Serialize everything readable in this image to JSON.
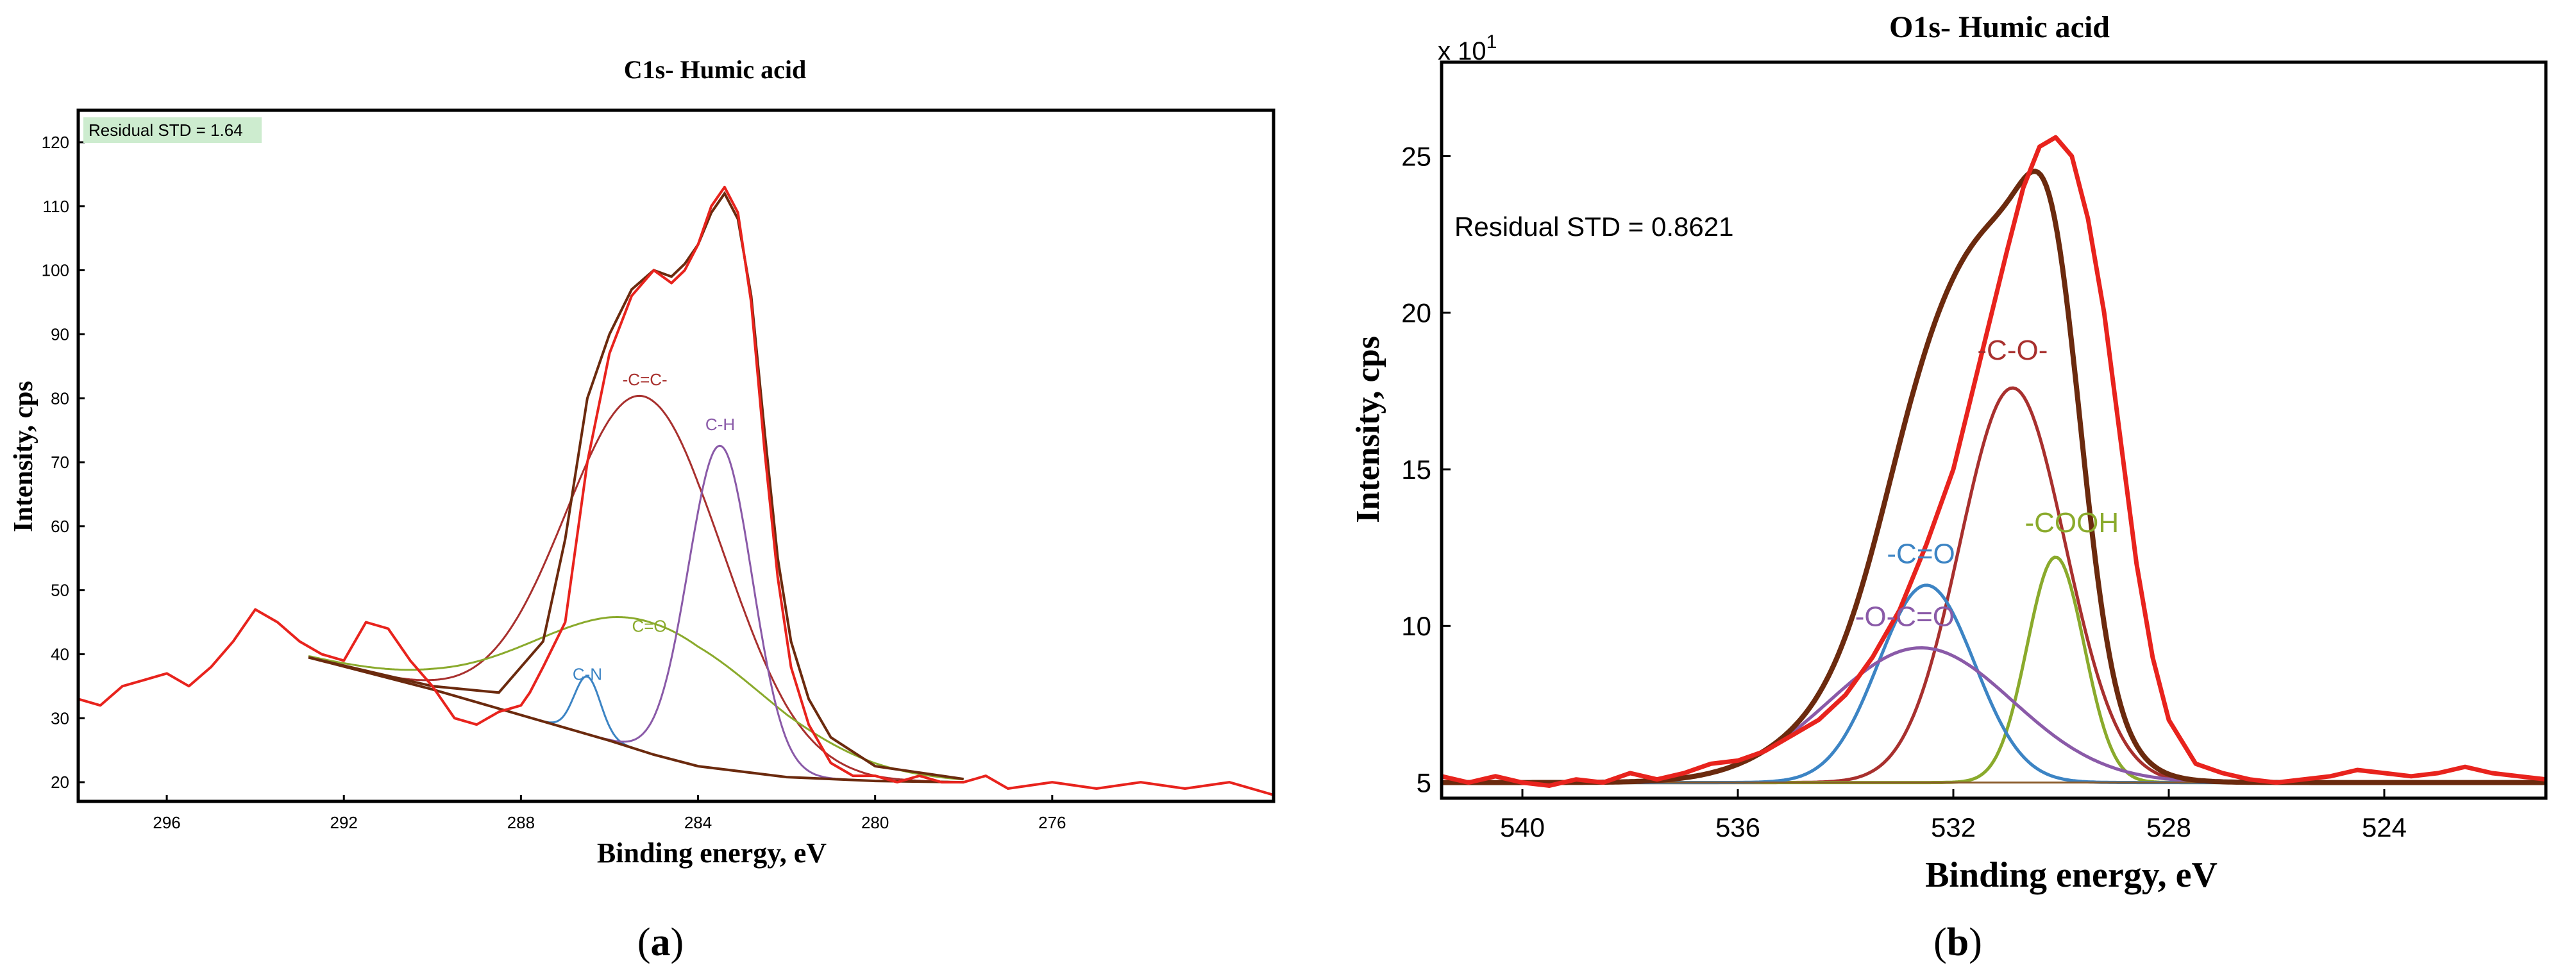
{
  "chart_data": [
    {
      "type": "line",
      "panel_label": "a",
      "title": "C1s- Humic acid",
      "xlabel": "Binding energy, eV",
      "ylabel": "Intensity, cps",
      "xlim": [
        298,
        271
      ],
      "ylim": [
        17,
        125
      ],
      "x_ticks": [
        296,
        292,
        288,
        284,
        280,
        276
      ],
      "y_ticks": [
        20,
        30,
        40,
        50,
        60,
        70,
        80,
        90,
        100,
        110,
        120
      ],
      "annotation": "Residual STD = 1.64",
      "annotation_bg": "#cdeccf",
      "background": {
        "name": "Background",
        "color": "#6b2a0e",
        "points": [
          [
            292.8,
            39.5
          ],
          [
            290,
            34.5
          ],
          [
            288,
            30.5
          ],
          [
            286,
            26.5
          ],
          [
            285,
            24.3
          ],
          [
            284,
            22.5
          ],
          [
            282,
            20.8
          ],
          [
            280,
            20.2
          ],
          [
            278,
            20.0
          ]
        ]
      },
      "raw": {
        "name": "Measured",
        "color": "#e8231d",
        "points": [
          [
            298,
            33
          ],
          [
            297.5,
            32
          ],
          [
            297,
            35
          ],
          [
            296.5,
            36
          ],
          [
            296,
            37
          ],
          [
            295.5,
            35
          ],
          [
            295,
            38
          ],
          [
            294.5,
            42
          ],
          [
            294,
            47
          ],
          [
            293.5,
            45
          ],
          [
            293,
            42
          ],
          [
            292.5,
            40
          ],
          [
            292,
            39
          ],
          [
            291.5,
            45
          ],
          [
            291,
            44
          ],
          [
            290.5,
            39
          ],
          [
            290,
            35
          ],
          [
            289.5,
            30
          ],
          [
            289,
            29
          ],
          [
            288.5,
            31
          ],
          [
            288,
            32
          ],
          [
            287.8,
            34
          ],
          [
            287.5,
            38
          ],
          [
            287,
            45
          ],
          [
            286.5,
            70
          ],
          [
            286,
            87
          ],
          [
            285.5,
            96
          ],
          [
            285,
            100
          ],
          [
            284.6,
            98
          ],
          [
            284.3,
            100
          ],
          [
            284,
            104
          ],
          [
            283.7,
            110
          ],
          [
            283.4,
            113
          ],
          [
            283.1,
            109
          ],
          [
            282.8,
            95
          ],
          [
            282.5,
            72
          ],
          [
            282.2,
            52
          ],
          [
            281.9,
            38
          ],
          [
            281.5,
            29
          ],
          [
            281,
            23
          ],
          [
            280.5,
            21
          ],
          [
            280,
            21
          ],
          [
            279.5,
            20
          ],
          [
            279,
            21
          ],
          [
            278.5,
            20
          ],
          [
            278,
            20
          ],
          [
            277.5,
            21
          ],
          [
            277,
            19
          ],
          [
            276,
            20
          ],
          [
            275,
            19
          ],
          [
            274,
            20
          ],
          [
            273,
            19
          ],
          [
            272,
            20
          ],
          [
            271,
            18
          ]
        ]
      },
      "envelope": {
        "name": "Envelope",
        "color": "#6b2a0e",
        "points": [
          [
            292.8,
            39.5
          ],
          [
            290,
            35
          ],
          [
            288.5,
            34
          ],
          [
            287.5,
            42
          ],
          [
            287,
            58
          ],
          [
            286.5,
            80
          ],
          [
            286,
            90
          ],
          [
            285.5,
            97
          ],
          [
            285,
            100
          ],
          [
            284.6,
            99
          ],
          [
            284.3,
            101
          ],
          [
            284,
            104
          ],
          [
            283.7,
            109
          ],
          [
            283.4,
            112
          ],
          [
            283.1,
            108
          ],
          [
            282.8,
            96
          ],
          [
            282.5,
            75
          ],
          [
            282.2,
            55
          ],
          [
            281.9,
            42
          ],
          [
            281.5,
            33
          ],
          [
            281,
            27
          ],
          [
            280,
            22.5
          ],
          [
            278,
            20.5
          ]
        ]
      },
      "components": [
        {
          "label": "-C=C-",
          "color": "#a8302e",
          "center": 285.2,
          "height": 55.5,
          "fwhm": 4.2
        },
        {
          "label": "C=O",
          "color": "#8aaa2c",
          "center": 285.1,
          "height": 20.5,
          "fwhm": 6.0
        },
        {
          "label": "C-N",
          "color": "#3c84c4",
          "center": 286.5,
          "height": 9.0,
          "fwhm": 0.7
        },
        {
          "label": "C-H",
          "color": "#8a5aa8",
          "center": 283.5,
          "height": 50.5,
          "fwhm": 1.7
        }
      ]
    },
    {
      "type": "line",
      "panel_label": "b",
      "title": "O1s- Humic acid",
      "xlabel": "Binding energy, eV",
      "ylabel": "Intensity, cps",
      "y_multiplier": "x 10",
      "y_multiplier_exp": "1",
      "xlim": [
        541.5,
        521
      ],
      "ylim": [
        4.5,
        28
      ],
      "x_ticks": [
        540,
        536,
        532,
        528,
        524
      ],
      "y_ticks": [
        5,
        10,
        15,
        20,
        25
      ],
      "annotation": "Residual STD = 0.8621",
      "baseline": 5,
      "raw": {
        "name": "Measured",
        "color": "#e8231d",
        "points": [
          [
            541.5,
            5.2
          ],
          [
            541,
            5.0
          ],
          [
            540.5,
            5.2
          ],
          [
            540,
            5.0
          ],
          [
            539.5,
            4.9
          ],
          [
            539,
            5.1
          ],
          [
            538.5,
            5.0
          ],
          [
            538,
            5.3
          ],
          [
            537.5,
            5.1
          ],
          [
            537,
            5.3
          ],
          [
            536.5,
            5.6
          ],
          [
            536,
            5.7
          ],
          [
            535.5,
            6.0
          ],
          [
            535,
            6.5
          ],
          [
            534.5,
            7.0
          ],
          [
            534,
            7.8
          ],
          [
            533.5,
            9.0
          ],
          [
            533,
            10.5
          ],
          [
            532.5,
            12.6
          ],
          [
            532,
            15.0
          ],
          [
            531.5,
            18.5
          ],
          [
            531,
            22.0
          ],
          [
            530.7,
            24.0
          ],
          [
            530.4,
            25.3
          ],
          [
            530.1,
            25.6
          ],
          [
            529.8,
            25.0
          ],
          [
            529.5,
            23.0
          ],
          [
            529.2,
            20.0
          ],
          [
            528.9,
            16.0
          ],
          [
            528.6,
            12.0
          ],
          [
            528.3,
            9.0
          ],
          [
            528,
            7.0
          ],
          [
            527.5,
            5.6
          ],
          [
            527,
            5.3
          ],
          [
            526.5,
            5.1
          ],
          [
            526,
            5.0
          ],
          [
            525.5,
            5.1
          ],
          [
            525,
            5.2
          ],
          [
            524.5,
            5.4
          ],
          [
            524,
            5.3
          ],
          [
            523.5,
            5.2
          ],
          [
            523,
            5.3
          ],
          [
            522.5,
            5.5
          ],
          [
            522,
            5.3
          ],
          [
            521.5,
            5.2
          ],
          [
            521,
            5.1
          ]
        ]
      },
      "envelope": {
        "name": "Envelope",
        "color": "#6b2a0e"
      },
      "components": [
        {
          "label": "-C-O-",
          "color": "#a8302e",
          "center": 530.9,
          "height": 12.6,
          "fwhm": 2.3
        },
        {
          "label": "-COOH",
          "color": "#8aaa2c",
          "center": 530.1,
          "height": 7.2,
          "fwhm": 1.25
        },
        {
          "label": "-C=O",
          "color": "#3c84c4",
          "center": 532.5,
          "height": 6.3,
          "fwhm": 2.1
        },
        {
          "label": "-O-C=O",
          "color": "#8a5aa8",
          "center": 532.6,
          "height": 4.3,
          "fwhm": 4.0
        }
      ]
    }
  ]
}
